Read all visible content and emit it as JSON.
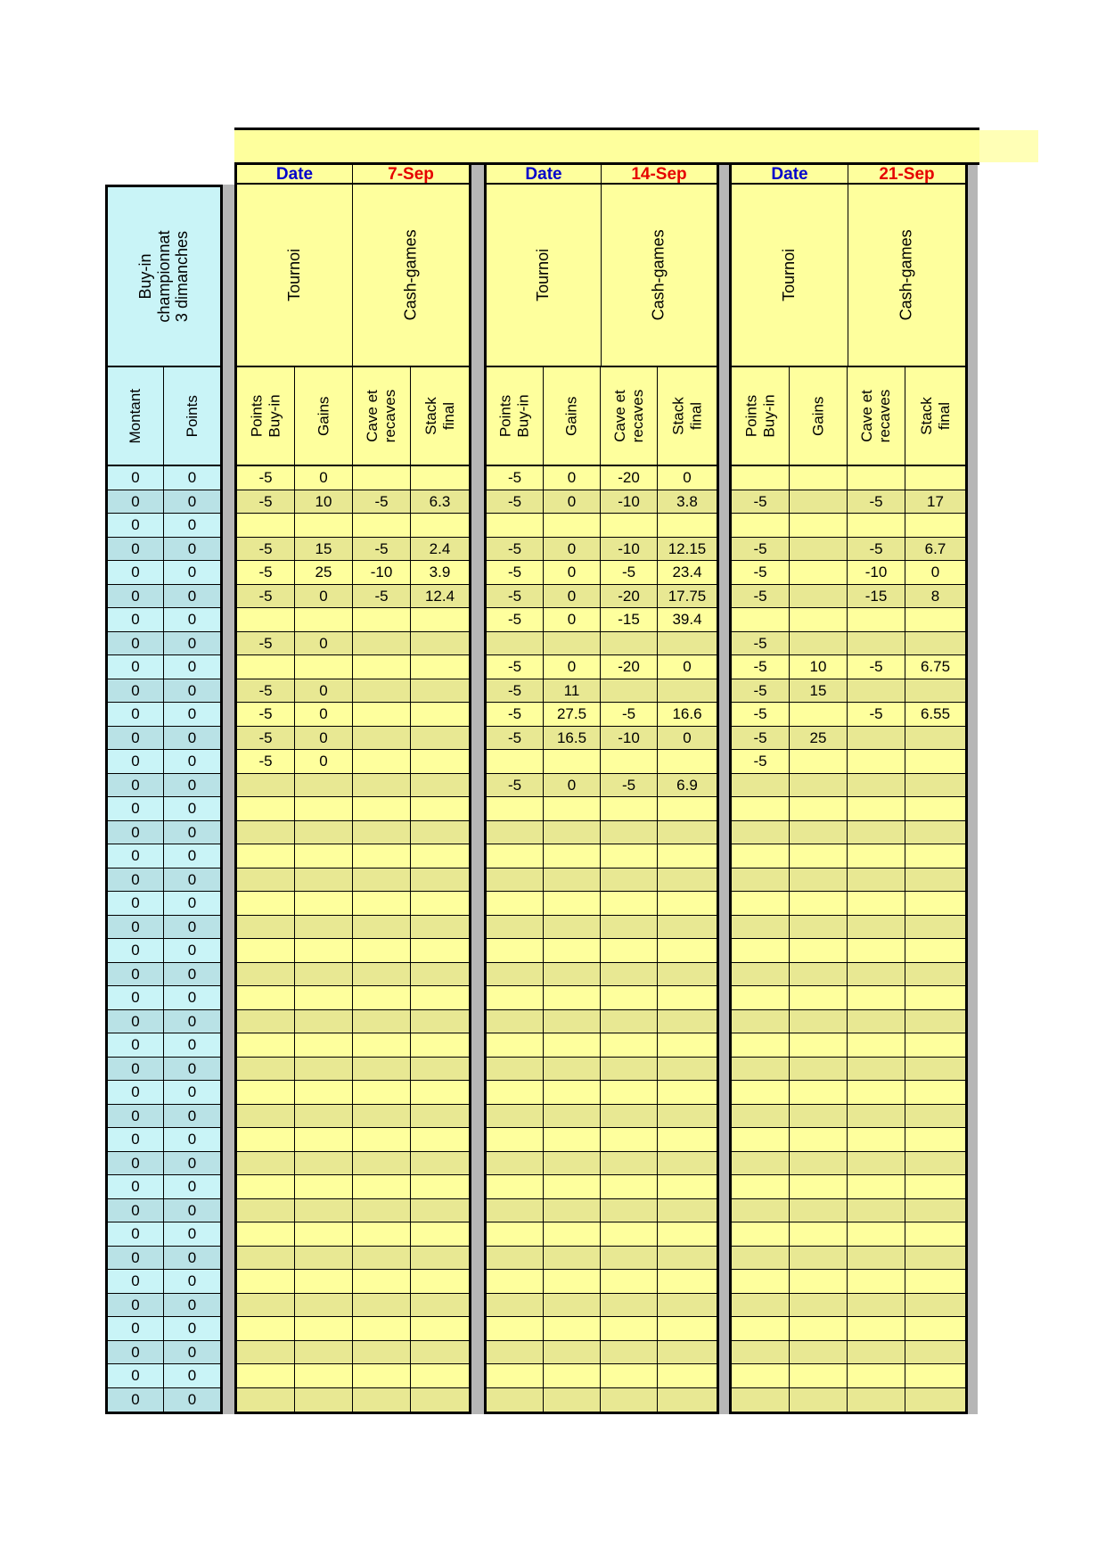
{
  "left_table": {
    "group_header": "Buy-in championnat\n3 dimanches",
    "columns": [
      "Montant",
      "Points"
    ],
    "rows": [
      [
        "0",
        "0"
      ],
      [
        "0",
        "0"
      ],
      [
        "0",
        "0"
      ],
      [
        "0",
        "0"
      ],
      [
        "0",
        "0"
      ],
      [
        "0",
        "0"
      ],
      [
        "0",
        "0"
      ],
      [
        "0",
        "0"
      ],
      [
        "0",
        "0"
      ],
      [
        "0",
        "0"
      ],
      [
        "0",
        "0"
      ],
      [
        "0",
        "0"
      ],
      [
        "0",
        "0"
      ],
      [
        "0",
        "0"
      ],
      [
        "0",
        "0"
      ],
      [
        "0",
        "0"
      ],
      [
        "0",
        "0"
      ],
      [
        "0",
        "0"
      ],
      [
        "0",
        "0"
      ],
      [
        "0",
        "0"
      ],
      [
        "0",
        "0"
      ],
      [
        "0",
        "0"
      ],
      [
        "0",
        "0"
      ],
      [
        "0",
        "0"
      ],
      [
        "0",
        "0"
      ],
      [
        "0",
        "0"
      ],
      [
        "0",
        "0"
      ],
      [
        "0",
        "0"
      ],
      [
        "0",
        "0"
      ],
      [
        "0",
        "0"
      ],
      [
        "0",
        "0"
      ],
      [
        "0",
        "0"
      ],
      [
        "0",
        "0"
      ],
      [
        "0",
        "0"
      ],
      [
        "0",
        "0"
      ],
      [
        "0",
        "0"
      ],
      [
        "0",
        "0"
      ],
      [
        "0",
        "0"
      ],
      [
        "0",
        "0"
      ],
      [
        "0",
        "0"
      ]
    ]
  },
  "row_count": 40,
  "sections": [
    {
      "date_label": "Date",
      "date_value": "7-Sep",
      "group_headers": [
        "Tournoi",
        "Cash-games"
      ],
      "columns": [
        "Points\nBuy-in",
        "Gains",
        "Cave et\nrecaves",
        "Stack final"
      ],
      "rows": [
        [
          "-5",
          "0",
          "",
          ""
        ],
        [
          "-5",
          "10",
          "-5",
          "6.3"
        ],
        [
          "",
          "",
          "",
          ""
        ],
        [
          "-5",
          "15",
          "-5",
          "2.4"
        ],
        [
          "-5",
          "25",
          "-10",
          "3.9"
        ],
        [
          "-5",
          "0",
          "-5",
          "12.4"
        ],
        [
          "",
          "",
          "",
          ""
        ],
        [
          "-5",
          "0",
          "",
          ""
        ],
        [
          "",
          "",
          "",
          ""
        ],
        [
          "-5",
          "0",
          "",
          ""
        ],
        [
          "-5",
          "0",
          "",
          ""
        ],
        [
          "-5",
          "0",
          "",
          ""
        ],
        [
          "-5",
          "0",
          "",
          ""
        ]
      ]
    },
    {
      "date_label": "Date",
      "date_value": "14-Sep",
      "group_headers": [
        "Tournoi",
        "Cash-games"
      ],
      "columns": [
        "Points\nBuy-in",
        "Gains",
        "Cave et\nrecaves",
        "Stack final"
      ],
      "rows": [
        [
          "-5",
          "0",
          "-20",
          "0"
        ],
        [
          "-5",
          "0",
          "-10",
          "3.8"
        ],
        [
          "",
          "",
          "",
          ""
        ],
        [
          "-5",
          "0",
          "-10",
          "12.15"
        ],
        [
          "-5",
          "0",
          "-5",
          "23.4"
        ],
        [
          "-5",
          "0",
          "-20",
          "17.75"
        ],
        [
          "-5",
          "0",
          "-15",
          "39.4"
        ],
        [
          "",
          "",
          "",
          ""
        ],
        [
          "-5",
          "0",
          "-20",
          "0"
        ],
        [
          "-5",
          "11",
          "",
          ""
        ],
        [
          "-5",
          "27.5",
          "-5",
          "16.6"
        ],
        [
          "-5",
          "16.5",
          "-10",
          "0"
        ],
        [
          "",
          "",
          "",
          ""
        ],
        [
          "-5",
          "0",
          "-5",
          "6.9"
        ]
      ]
    },
    {
      "date_label": "Date",
      "date_value": "21-Sep",
      "group_headers": [
        "Tournoi",
        "Cash-games"
      ],
      "columns": [
        "Points\nBuy-in",
        "Gains",
        "Cave et\nrecaves",
        "Stack final"
      ],
      "rows": [
        [
          "",
          "",
          "",
          ""
        ],
        [
          "-5",
          "",
          "-5",
          "17"
        ],
        [
          "",
          "",
          "",
          ""
        ],
        [
          "-5",
          "",
          "-5",
          "6.7"
        ],
        [
          "-5",
          "",
          "-10",
          "0"
        ],
        [
          "-5",
          "",
          "-15",
          "8"
        ],
        [
          "",
          "",
          "",
          ""
        ],
        [
          "-5",
          "",
          "",
          ""
        ],
        [
          "-5",
          "10",
          "-5",
          "6.75"
        ],
        [
          "-5",
          "15",
          "",
          ""
        ],
        [
          "-5",
          "",
          "-5",
          "6.55"
        ],
        [
          "-5",
          "25",
          "",
          ""
        ],
        [
          "-5",
          "",
          "",
          ""
        ]
      ]
    }
  ],
  "colors": {
    "section_bg": "#feff9d",
    "section_band_bg": "#e8e893",
    "left_bg": "#c9f4f7",
    "left_band_bg": "#b9e2e6",
    "gap_gray": "#b6b6b6",
    "date_label_blue": "#0000cc",
    "date_value_red": "#e60000",
    "border_black": "#000000"
  }
}
